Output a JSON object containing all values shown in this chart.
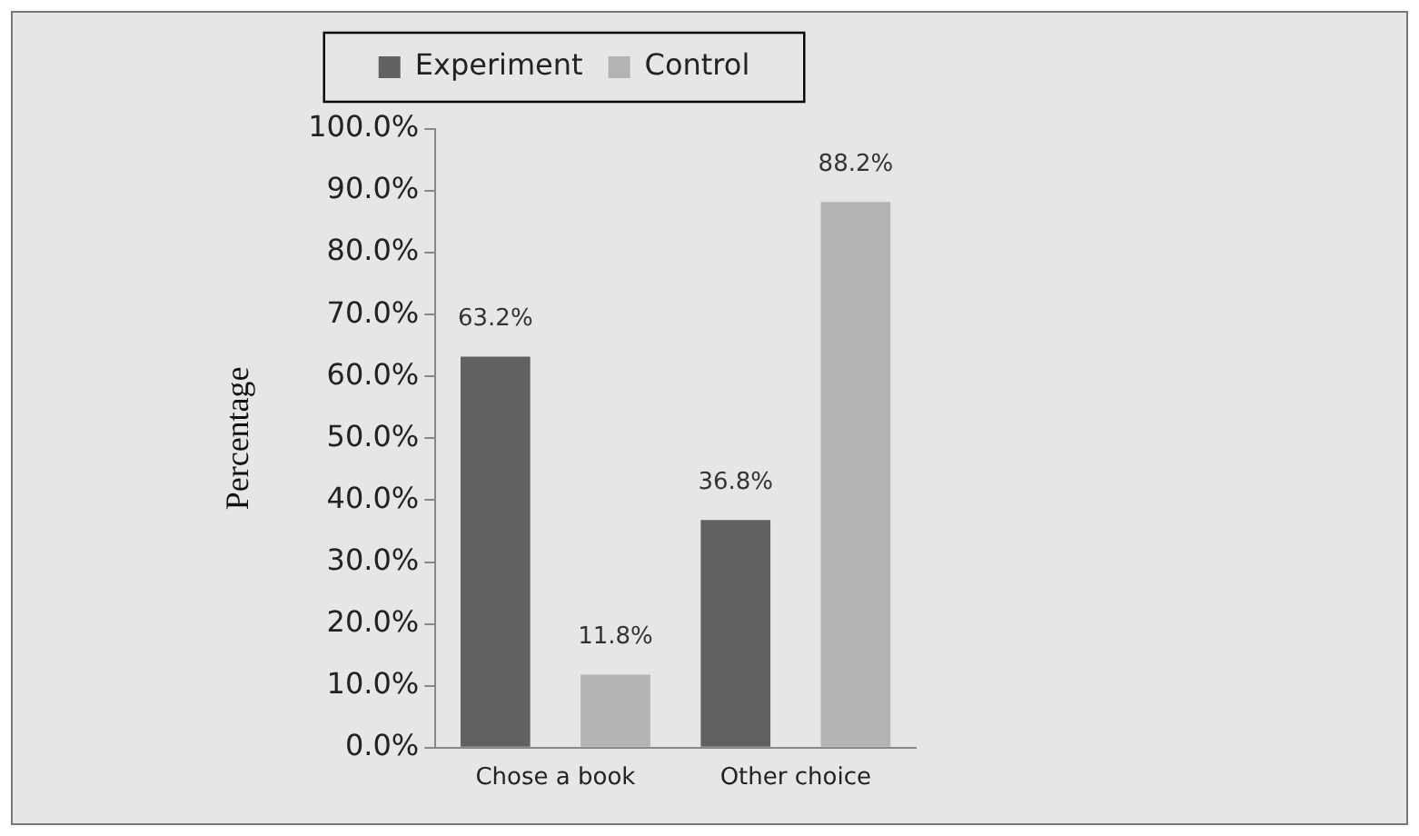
{
  "chart_data": {
    "type": "bar",
    "ylabel": "Percentage",
    "categories": [
      "Chose a book",
      "Other choice"
    ],
    "series": [
      {
        "name": "Experiment",
        "color": "#616161",
        "values": [
          63.2,
          36.8
        ],
        "value_labels": [
          "63.2%",
          "36.8%"
        ]
      },
      {
        "name": "Control",
        "color": "#b3b3b3",
        "values": [
          11.8,
          88.2
        ],
        "value_labels": [
          "11.8%",
          "88.2%"
        ]
      }
    ],
    "ylim": [
      0,
      100
    ],
    "yticks": [
      {
        "value": 0,
        "label": "0.0%"
      },
      {
        "value": 10,
        "label": "10.0%"
      },
      {
        "value": 20,
        "label": "20.0%"
      },
      {
        "value": 30,
        "label": "30.0%"
      },
      {
        "value": 40,
        "label": "40.0%"
      },
      {
        "value": 50,
        "label": "50.0%"
      },
      {
        "value": 60,
        "label": "60.0%"
      },
      {
        "value": 70,
        "label": "70.0%"
      },
      {
        "value": 80,
        "label": "80.0%"
      },
      {
        "value": 90,
        "label": "90.0%"
      },
      {
        "value": 100,
        "label": "100.0%"
      }
    ],
    "grid": false,
    "legend": "top"
  }
}
